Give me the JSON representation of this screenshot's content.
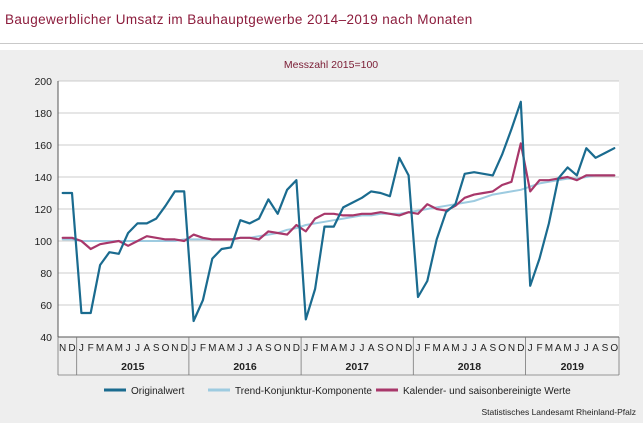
{
  "title": "Baugewerblicher Umsatz im Bauhauptgewerbe 2014–2019 nach Monaten",
  "chart_data": {
    "type": "line",
    "subtitle": "Messzahl 2015=100",
    "ylim": [
      40,
      200
    ],
    "yticks": [
      40,
      60,
      80,
      100,
      120,
      140,
      160,
      180,
      200
    ],
    "grid": true,
    "legend_position": "bottom",
    "months": [
      "N",
      "D",
      "J",
      "F",
      "M",
      "A",
      "M",
      "J",
      "J",
      "A",
      "S",
      "O",
      "N",
      "D",
      "J",
      "F",
      "M",
      "A",
      "M",
      "J",
      "J",
      "A",
      "S",
      "O",
      "N",
      "D",
      "J",
      "F",
      "M",
      "A",
      "M",
      "J",
      "J",
      "A",
      "S",
      "O",
      "N",
      "D",
      "J",
      "F",
      "M",
      "A",
      "M",
      "J",
      "J",
      "A",
      "S",
      "O",
      "N",
      "D",
      "J",
      "F",
      "M",
      "A",
      "M",
      "J",
      "J",
      "A",
      "S",
      "O"
    ],
    "years": [
      {
        "label": "2015",
        "start": 2,
        "end": 13
      },
      {
        "label": "2016",
        "start": 14,
        "end": 25
      },
      {
        "label": "2017",
        "start": 26,
        "end": 37
      },
      {
        "label": "2018",
        "start": 38,
        "end": 49
      },
      {
        "label": "2019",
        "start": 50,
        "end": 59
      }
    ],
    "series": [
      {
        "name": "Originalwert",
        "color": "#1a6b8f",
        "values": [
          130,
          130,
          55,
          55,
          85,
          93,
          92,
          105,
          111,
          111,
          114,
          122,
          131,
          131,
          50,
          63,
          89,
          95,
          96,
          113,
          111,
          114,
          126,
          117,
          132,
          138,
          51,
          70,
          109,
          109,
          121,
          124,
          127,
          131,
          130,
          128,
          152,
          141,
          65,
          75,
          101,
          118,
          123,
          142,
          143,
          142,
          141,
          154,
          170,
          187,
          72,
          89,
          111,
          139,
          146,
          141,
          158,
          152,
          155,
          158
        ]
      },
      {
        "name": "Trend-Konjunktur-Komponente",
        "color": "#9dcbe0",
        "values": [
          101,
          101,
          100,
          100,
          100,
          100,
          100,
          100,
          100,
          100,
          100,
          100,
          100,
          101,
          101,
          101,
          101,
          101,
          101,
          102,
          102,
          103,
          104,
          105,
          107,
          108,
          110,
          111,
          112,
          113,
          114,
          115,
          116,
          116,
          117,
          117,
          117,
          118,
          119,
          120,
          121,
          122,
          123,
          124,
          125,
          127,
          129,
          130,
          131,
          132,
          134,
          136,
          137,
          138,
          139,
          139,
          140,
          141,
          141,
          141
        ]
      },
      {
        "name": "Kalender- und saisonbereinigte Werte",
        "color": "#a8376a",
        "values": [
          102,
          102,
          100,
          95,
          98,
          99,
          100,
          97,
          100,
          103,
          102,
          101,
          101,
          100,
          104,
          102,
          101,
          101,
          101,
          102,
          102,
          101,
          106,
          105,
          104,
          110,
          106,
          114,
          117,
          117,
          116,
          116,
          117,
          117,
          118,
          117,
          116,
          118,
          117,
          123,
          120,
          119,
          122,
          127,
          129,
          130,
          131,
          135,
          137,
          161,
          131,
          138,
          138,
          139,
          140,
          138,
          141,
          141,
          141,
          141
        ]
      }
    ]
  },
  "source": "Statistisches Landesamt Rheinland-Pfalz"
}
